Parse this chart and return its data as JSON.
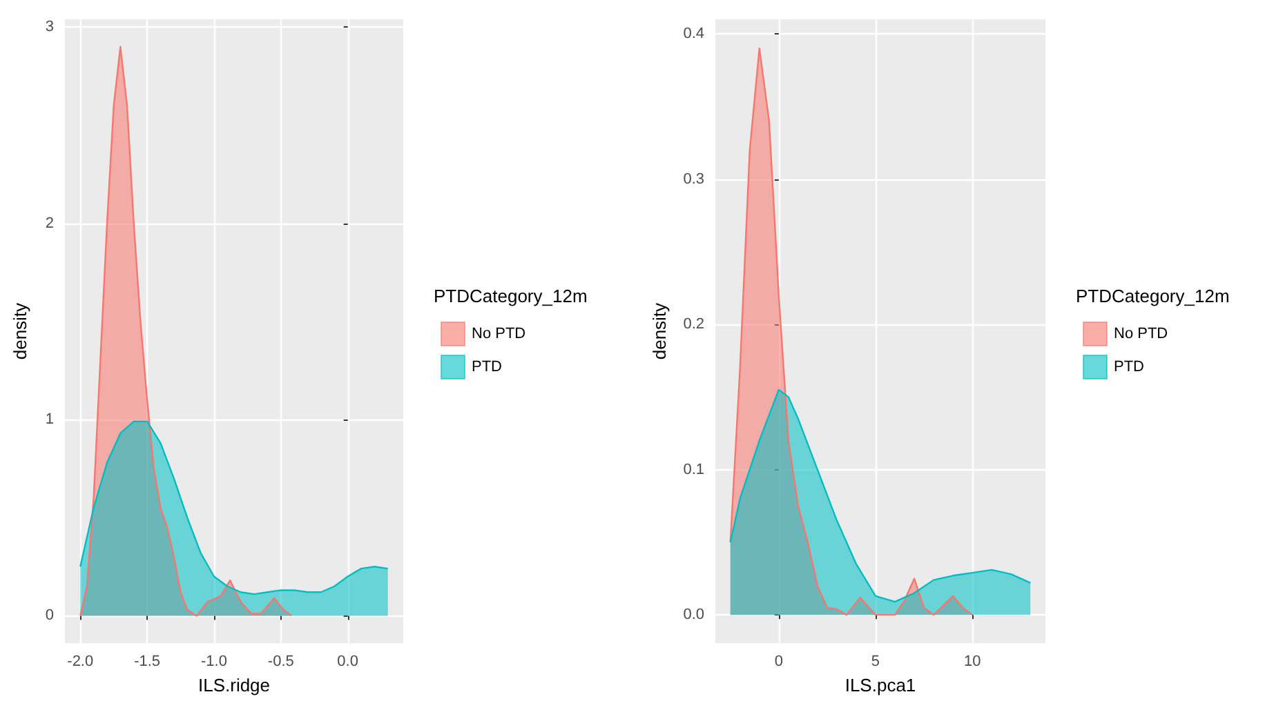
{
  "chart_data": [
    {
      "type": "area",
      "xlabel": "ILS.ridge",
      "ylabel": "density",
      "legend_title": "PTDCategory_12m",
      "legend": "right",
      "grid": true,
      "xlim": [
        -2.115,
        0.415
      ],
      "ylim": [
        -0.14,
        3.04
      ],
      "xticks": [
        {
          "value": -2,
          "label": "-2.0"
        },
        {
          "value": -1.5,
          "label": "-1.5"
        },
        {
          "value": -1,
          "label": "-1.0"
        },
        {
          "value": -0.5,
          "label": "-0.5"
        },
        {
          "value": 0,
          "label": "0.0"
        }
      ],
      "yticks": [
        0,
        1,
        2,
        3
      ],
      "series": [
        {
          "name": "No PTD",
          "color": "#f8766d",
          "x": [
            -2.0,
            -1.95,
            -1.9,
            -1.85,
            -1.8,
            -1.75,
            -1.7,
            -1.65,
            -1.6,
            -1.55,
            -1.5,
            -1.45,
            -1.4,
            -1.35,
            -1.3,
            -1.25,
            -1.2,
            -1.13,
            -1.05,
            -0.95,
            -0.88,
            -0.8,
            -0.72,
            -0.65,
            -0.55,
            -0.48,
            -0.42
          ],
          "values": [
            0,
            0.15,
            0.6,
            1.3,
            2.0,
            2.6,
            2.9,
            2.6,
            2.0,
            1.5,
            1.1,
            0.75,
            0.55,
            0.45,
            0.3,
            0.12,
            0.03,
            0,
            0.07,
            0.1,
            0.18,
            0.07,
            0.01,
            0.01,
            0.09,
            0.03,
            0
          ]
        },
        {
          "name": "PTD",
          "color": "#00bfc4",
          "x": [
            -2.0,
            -1.9,
            -1.8,
            -1.7,
            -1.6,
            -1.5,
            -1.4,
            -1.3,
            -1.2,
            -1.1,
            -1.0,
            -0.9,
            -0.8,
            -0.7,
            -0.6,
            -0.5,
            -0.4,
            -0.3,
            -0.2,
            -0.1,
            0.0,
            0.1,
            0.2,
            0.3
          ],
          "values": [
            0.25,
            0.55,
            0.78,
            0.93,
            0.99,
            0.99,
            0.88,
            0.7,
            0.5,
            0.32,
            0.2,
            0.15,
            0.12,
            0.11,
            0.12,
            0.13,
            0.13,
            0.12,
            0.12,
            0.15,
            0.2,
            0.24,
            0.25,
            0.24
          ]
        }
      ]
    },
    {
      "type": "area",
      "xlabel": "ILS.pca1",
      "ylabel": "density",
      "legend_title": "PTDCategory_12m",
      "legend": "right",
      "grid": true,
      "xlim": [
        -3.275,
        13.775
      ],
      "ylim": [
        -0.0195,
        0.41
      ],
      "xticks": [
        0,
        5,
        10
      ],
      "yticks": [
        {
          "value": 0,
          "label": "0.0"
        },
        {
          "value": 0.1,
          "label": "0.1"
        },
        {
          "value": 0.2,
          "label": "0.2"
        },
        {
          "value": 0.3,
          "label": "0.3"
        },
        {
          "value": 0.4,
          "label": "0.4"
        }
      ],
      "series": [
        {
          "name": "No PTD",
          "color": "#f8766d",
          "x": [
            -2.5,
            -2,
            -1.5,
            -1,
            -0.5,
            0,
            0.5,
            1,
            1.5,
            2,
            2.5,
            3,
            3.5,
            4.2,
            5,
            6,
            6.5,
            7,
            7.5,
            8,
            9,
            9.5,
            10
          ],
          "values": [
            0.05,
            0.17,
            0.32,
            0.39,
            0.34,
            0.22,
            0.12,
            0.075,
            0.05,
            0.02,
            0.005,
            0.004,
            0,
            0.012,
            0,
            0,
            0.01,
            0.025,
            0.005,
            0,
            0.013,
            0.005,
            0
          ]
        },
        {
          "name": "PTD",
          "color": "#00bfc4",
          "x": [
            -2.5,
            -2,
            -1,
            0,
            0.5,
            1,
            2,
            3,
            4,
            5,
            6,
            7,
            8,
            9,
            10,
            11,
            12,
            13
          ],
          "values": [
            0.05,
            0.08,
            0.12,
            0.155,
            0.15,
            0.135,
            0.1,
            0.065,
            0.035,
            0.013,
            0.009,
            0.015,
            0.024,
            0.027,
            0.029,
            0.031,
            0.028,
            0.022
          ]
        }
      ]
    }
  ]
}
